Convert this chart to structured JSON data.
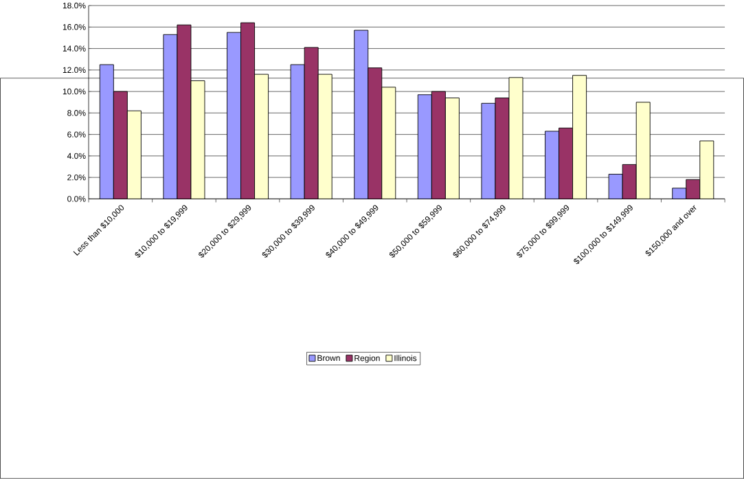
{
  "chart_data": {
    "type": "bar",
    "categories": [
      "Less than $10,000",
      "$10,000 to $19,999",
      "$20,000 to $29,999",
      "$30,000 to $39,999",
      "$40,000 to $49,999",
      "$50,000 to $59,999",
      "$60,000 to $74,999",
      "$75,000 to $99,999",
      "$100,000 to $149,999",
      "$150,000 and over"
    ],
    "series": [
      {
        "name": "Brown",
        "color": "#9999ff",
        "values": [
          12.5,
          15.3,
          15.5,
          12.5,
          15.7,
          9.7,
          8.9,
          6.3,
          2.3,
          1.0
        ]
      },
      {
        "name": "Region",
        "color": "#993366",
        "values": [
          10.0,
          16.2,
          16.4,
          14.1,
          12.2,
          10.0,
          9.4,
          6.6,
          3.2,
          1.8
        ]
      },
      {
        "name": "Illinois",
        "color": "#ffffcc",
        "values": [
          8.2,
          11.0,
          11.6,
          11.6,
          10.4,
          9.4,
          11.3,
          11.5,
          9.0,
          5.4
        ]
      }
    ],
    "ylim": [
      0,
      18
    ],
    "yticks": [
      {
        "value": 0,
        "label": "0.0%"
      },
      {
        "value": 2,
        "label": "2.0%"
      },
      {
        "value": 4,
        "label": "4.0%"
      },
      {
        "value": 6,
        "label": "6.0%"
      },
      {
        "value": 8,
        "label": "8.0%"
      },
      {
        "value": 10,
        "label": "10.0%"
      },
      {
        "value": 12,
        "label": "12.0%"
      },
      {
        "value": 14,
        "label": "14.0%"
      },
      {
        "value": 16,
        "label": "16.0%"
      },
      {
        "value": 18,
        "label": "18.0%"
      }
    ],
    "grid": "y",
    "legend": "bottom"
  }
}
